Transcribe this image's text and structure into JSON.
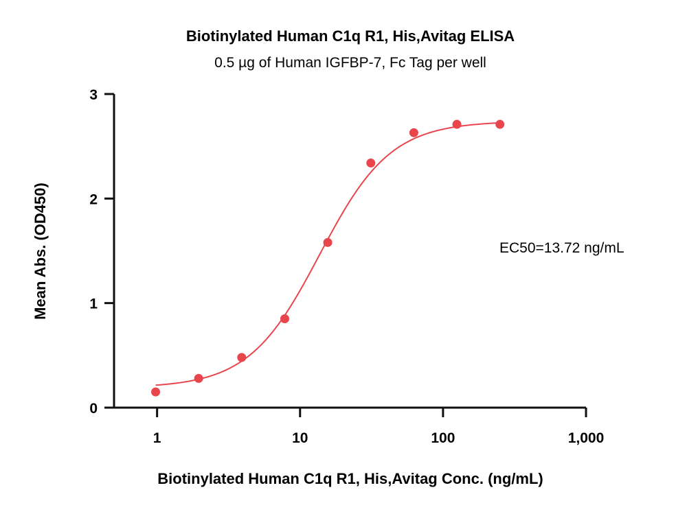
{
  "chart_data": {
    "type": "scatter",
    "title": "Biotinylated Human C1q R1, His,Avitag ELISA",
    "subtitle": "0.5 µg of Human IGFBP-7, Fc Tag per well",
    "xlabel": "Biotinylated Human C1q R1, His,Avitag Conc. (ng/mL)",
    "ylabel": "Mean Abs. (OD450)",
    "x_scale": "log",
    "xlim": [
      0.5,
      1000
    ],
    "ylim": [
      0,
      3
    ],
    "x_ticks": [
      1,
      10,
      100,
      1000
    ],
    "x_tick_labels": [
      "1",
      "10",
      "100",
      "1,000"
    ],
    "y_ticks": [
      0,
      1,
      2,
      3
    ],
    "y_tick_labels": [
      "0",
      "1",
      "2",
      "3"
    ],
    "grid": false,
    "annotation": "EC50=13.72 ng/mL",
    "series_color": "#e8454c",
    "series": [
      {
        "x": [
          0.977,
          1.953,
          3.906,
          7.813,
          15.625,
          31.25,
          62.5,
          125,
          250
        ],
        "y": [
          0.15,
          0.28,
          0.48,
          0.85,
          1.58,
          2.34,
          2.63,
          2.71,
          2.71
        ]
      }
    ],
    "fit": {
      "model": "4PL",
      "bottom": 0.19,
      "top": 2.74,
      "ec50": 13.72,
      "hill": 1.75
    }
  }
}
